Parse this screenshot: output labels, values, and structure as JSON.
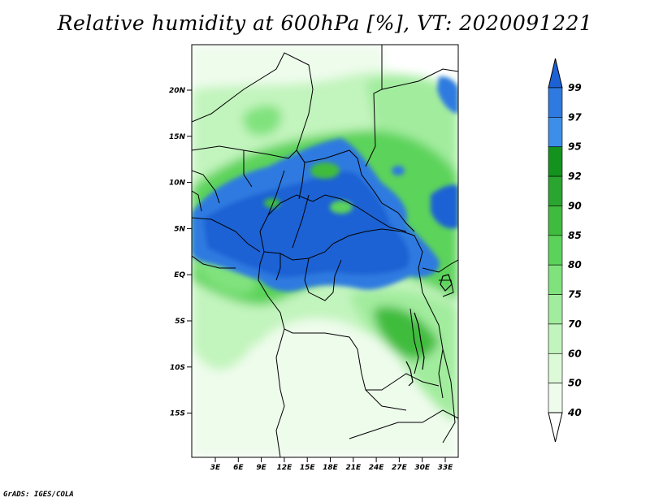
{
  "title": "Relative humidity at 600hPa [%], VT: 2020091221",
  "credit": "GrADS: IGES/COLA",
  "lat_labels": [
    "20N",
    "15N",
    "10N",
    "5N",
    "EQ",
    "5S",
    "10S",
    "15S"
  ],
  "lon_labels": [
    "3E",
    "6E",
    "9E",
    "12E",
    "15E",
    "18E",
    "21E",
    "24E",
    "27E",
    "30E",
    "33E"
  ],
  "colorbar": {
    "labels": [
      "99",
      "97",
      "95",
      "92",
      "90",
      "85",
      "80",
      "75",
      "70",
      "60",
      "50",
      "40"
    ],
    "colors": [
      "#1d62d4",
      "#2f7ae0",
      "#3c8ee8",
      "#13931d",
      "#2aa52f",
      "#3fbc3e",
      "#5bd35a",
      "#80e27d",
      "#a2ec9e",
      "#c2f4bd",
      "#dcfad7",
      "#eefcec",
      "#ffffff"
    ]
  },
  "palette": {
    "blue_dark": "#1d62d4",
    "blue": "#3c8ee8",
    "green_dark": "#13931d",
    "green": "#3fbc3e",
    "green_mid": "#80e27d",
    "green_light": "#c2f4bd",
    "green_pale": "#eefcec"
  }
}
